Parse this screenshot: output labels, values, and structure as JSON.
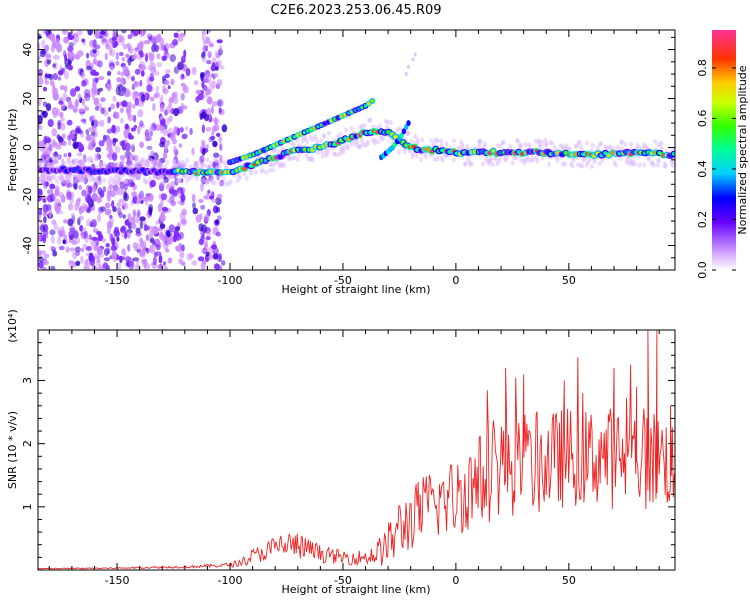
{
  "title": "C2E6.2023.253.06.45.R09",
  "colors": {
    "snr_line": "#ee2222",
    "scatter_low": "#cc88ff",
    "scatter_mid": "#7a22ff",
    "scatter_high": "#3300cc",
    "axis": "#000000"
  },
  "chart_data": [
    {
      "type": "heatmap",
      "xlabel": "Height of straight line (km)",
      "ylabel": "Frequency (Hz)",
      "xlim": [
        -185,
        97
      ],
      "ylim": [
        -50,
        48
      ],
      "xticks": [
        -150,
        -100,
        -50,
        0,
        50
      ],
      "yticks": [
        -40,
        -20,
        0,
        20,
        40
      ],
      "colorbar": {
        "label": "Normalized spectral amplitude",
        "range": [
          0,
          0.95
        ],
        "ticks": [
          0.0,
          0.2,
          0.4,
          0.6,
          0.8
        ],
        "colormap": [
          "#ffffff",
          "#cc99ff",
          "#6600ff",
          "#0000ff",
          "#00ccff",
          "#00ff66",
          "#66ff00",
          "#ffff00",
          "#ff9900",
          "#ff0000",
          "#ff3399"
        ]
      },
      "ridge": {
        "x": [
          -185,
          -120,
          -100,
          -90,
          -80,
          -70,
          -60,
          -50,
          -40,
          -35,
          -30,
          -25,
          -20,
          -15,
          -10,
          0,
          10,
          20,
          40,
          60,
          80,
          97
        ],
        "y": [
          -9,
          -10,
          -10,
          -7,
          -4,
          -1,
          0,
          3,
          6,
          7,
          6,
          3,
          0,
          -1,
          -1,
          -2,
          -2,
          -2,
          -2,
          -3,
          -2,
          -3
        ]
      },
      "upper_branch": {
        "x": [
          -100,
          -90,
          -80,
          -70,
          -60,
          -50,
          -45,
          -40,
          -37
        ],
        "y": [
          -6,
          -3,
          1,
          5,
          9,
          13,
          15,
          17,
          19
        ]
      },
      "diagonal_branch": {
        "x": [
          -33,
          -28,
          -24,
          -21
        ],
        "y": [
          -4,
          0,
          5,
          10
        ]
      },
      "noise_region": {
        "x": [
          -185,
          -100
        ],
        "y": [
          -50,
          48
        ]
      }
    },
    {
      "type": "line",
      "xlabel": "Height of straight line (km)",
      "ylabel": "SNR (10 * v/v)",
      "y_multiplier_label": "(x10⁴)",
      "xlim": [
        -185,
        97
      ],
      "ylim": [
        0,
        3.8
      ],
      "xticks": [
        -150,
        -100,
        -50,
        0,
        50
      ],
      "yticks": [
        1,
        2,
        3
      ],
      "series": [
        {
          "envelope": {
            "x": [
              -185,
              -150,
              -120,
              -105,
              -100,
              -95,
              -90,
              -85,
              -80,
              -75,
              -70,
              -65,
              -60,
              -55,
              -50,
              -45,
              -40,
              -35,
              -30,
              -25,
              -20,
              -15,
              -10,
              -5,
              0,
              5,
              10,
              15,
              20,
              25,
              30,
              35,
              40,
              45,
              50,
              55,
              60,
              65,
              70,
              75,
              80,
              85,
              90,
              95,
              97
            ],
            "mean": [
              0.02,
              0.03,
              0.05,
              0.07,
              0.08,
              0.12,
              0.22,
              0.28,
              0.35,
              0.4,
              0.38,
              0.32,
              0.26,
              0.22,
              0.2,
              0.2,
              0.2,
              0.26,
              0.4,
              0.65,
              0.8,
              0.95,
              1.05,
              1.1,
              1.15,
              1.3,
              1.4,
              1.55,
              1.7,
              1.65,
              1.6,
              1.65,
              1.7,
              1.75,
              1.8,
              1.75,
              1.8,
              1.85,
              1.75,
              1.8,
              1.85,
              1.75,
              1.8,
              1.7,
              1.6
            ],
            "spread": [
              0.01,
              0.01,
              0.02,
              0.03,
              0.04,
              0.06,
              0.12,
              0.15,
              0.2,
              0.25,
              0.22,
              0.18,
              0.14,
              0.12,
              0.12,
              0.12,
              0.12,
              0.2,
              0.35,
              0.5,
              0.5,
              0.55,
              0.6,
              0.6,
              0.65,
              0.7,
              0.75,
              0.8,
              0.85,
              0.8,
              0.75,
              0.8,
              0.8,
              0.8,
              0.8,
              0.75,
              0.8,
              0.85,
              0.8,
              0.8,
              0.85,
              0.8,
              0.8,
              0.75,
              0.7
            ]
          },
          "peaks": {
            "x": [
              22,
              30,
              48,
              70,
              80,
              85,
              89,
              95
            ],
            "y": [
              3.2,
              3.1,
              3.0,
              3.2,
              2.9,
              3.8,
              3.8,
              2.6
            ]
          }
        }
      ]
    }
  ]
}
